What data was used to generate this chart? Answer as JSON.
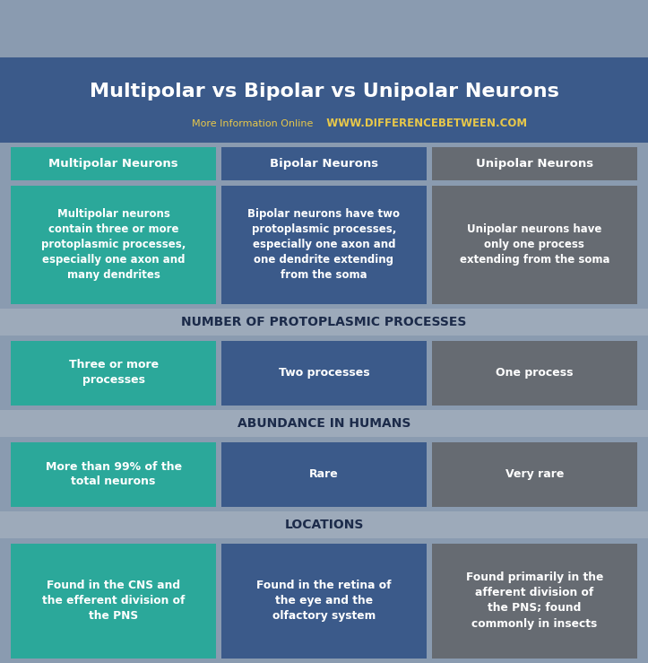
{
  "title": "Multipolar vs Bipolar vs Unipolar Neurons",
  "subtitle_left": "More Information Online",
  "subtitle_right": "WWW.DIFFERENCEBETWEEN.COM",
  "bg_color": "#8A9BB0",
  "header_bg": "#3B5A8A",
  "col_colors": [
    "#2BA89A",
    "#3B5A8A",
    "#666B72"
  ],
  "section_bg": "#9DAABA",
  "header_text_color": "#FFFFFF",
  "title_color": "#FFFFFF",
  "subtitle_left_color": "#E8C84A",
  "subtitle_right_color": "#E8C84A",
  "cell_text_color": "#FFFFFF",
  "section_text_color": "#1C2B4A",
  "columns": [
    "Multipolar Neurons",
    "Bipolar Neurons",
    "Unipolar Neurons"
  ],
  "col_header_colors": [
    "#2BA89A",
    "#3B5A8A",
    "#666B72"
  ],
  "definition_texts": [
    "Multipolar neurons\ncontain three or more\nprotoplasmic processes,\nespecially one axon and\nmany dendrites",
    "Bipolar neurons have two\nprotoplasmic processes,\nespecially one axon and\none dendrite extending\nfrom the soma",
    "Unipolar neurons have\nonly one process\nextending from the soma"
  ],
  "sections": [
    {
      "label": "NUMBER OF PROTOPLASMIC PROCESSES",
      "cells": [
        "Three or more\nprocesses",
        "Two processes",
        "One process"
      ]
    },
    {
      "label": "ABUNDANCE IN HUMANS",
      "cells": [
        "More than 99% of the\ntotal neurons",
        "Rare",
        "Very rare"
      ]
    },
    {
      "label": "LOCATIONS",
      "cells": [
        "Found in the CNS and\nthe efferent division of\nthe PNS",
        "Found in the retina of\nthe eye and the\nolfactory system",
        "Found primarily in the\nafferent division of\nthe PNS; found\ncommonly in insects"
      ]
    }
  ],
  "fig_w": 7.23,
  "fig_h": 7.39,
  "dpi": 100
}
